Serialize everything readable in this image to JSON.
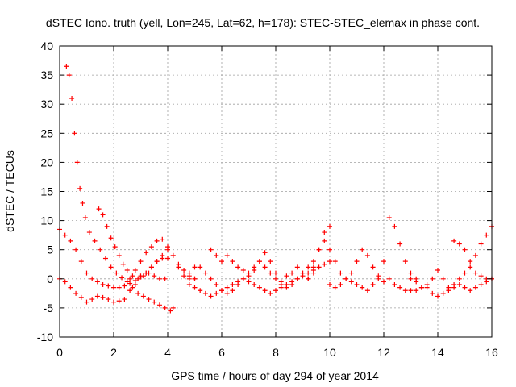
{
  "chart_data": {
    "type": "scatter",
    "title": "dSTEC Iono. truth (yell, Lon=245, Lat=62, h=178): STEC-STEC_elemax in phase cont.",
    "xlabel": "GPS time / hours of day 294 of year 2014",
    "ylabel": "dSTEC  / TECUs",
    "xlim": [
      0,
      16
    ],
    "ylim": [
      -10,
      40
    ],
    "xticks": [
      "0",
      "2",
      "4",
      "6",
      "8",
      "10",
      "12",
      "14",
      "16"
    ],
    "yticks": [
      "-10",
      "-5",
      "0",
      "5",
      "10",
      "15",
      "20",
      "25",
      "30",
      "35",
      "40"
    ],
    "grid": true,
    "marker": "+",
    "color": "#ff0000",
    "series": [
      {
        "x": [
          0.25,
          0.35,
          0.45,
          0.55,
          0.65,
          0.75,
          0.85,
          0.95,
          1.1,
          1.3,
          1.5,
          1.7,
          1.9,
          2.1,
          2.3,
          2.5,
          2.7,
          2.9,
          3.1,
          3.3,
          3.5,
          3.7,
          3.9,
          4.1,
          4.2
        ],
        "y": [
          36.5,
          35,
          31,
          25,
          20,
          15.5,
          13,
          10.5,
          8,
          6.5,
          5,
          3.5,
          2,
          1,
          0.2,
          -0.5,
          -1.5,
          -2.5,
          -3,
          -3.5,
          -4,
          -4.5,
          -5,
          -5.5,
          -5
        ]
      },
      {
        "x": [
          0.0,
          0.2,
          0.4,
          0.6,
          0.8,
          1.0,
          1.2,
          1.4,
          1.6,
          1.8,
          2.0,
          2.2,
          2.4,
          2.6,
          2.8,
          3.0,
          3.2,
          3.4,
          3.6,
          3.8,
          4.0,
          4.2,
          4.4,
          4.6,
          4.8,
          5.0
        ],
        "y": [
          8.5,
          7.5,
          6.5,
          5,
          3,
          1,
          0,
          -0.5,
          -1,
          -1.2,
          -1.5,
          -1.5,
          -1.2,
          -0.8,
          -0.3,
          0.3,
          1,
          2,
          3,
          4,
          5,
          4,
          2,
          0.5,
          0,
          0
        ]
      },
      {
        "x": [
          0.0,
          0.2,
          0.4,
          0.6,
          0.8,
          1.0,
          1.2,
          1.4,
          1.6,
          1.8,
          2.0,
          2.2,
          2.4,
          2.6,
          2.8,
          3.0,
          3.2,
          3.4,
          3.6,
          3.8,
          4.0
        ],
        "y": [
          0,
          -0.5,
          -1.5,
          -2.5,
          -3.2,
          -4,
          -3.5,
          -3,
          -3.2,
          -3.5,
          -4,
          -3.8,
          -3.5,
          -2,
          -1,
          0.5,
          1,
          2,
          3,
          3.5,
          3.5
        ]
      },
      {
        "x": [
          1.45,
          1.6,
          1.75,
          1.9,
          2.05,
          2.2,
          2.35,
          2.5,
          2.7,
          2.9,
          3.1,
          3.3,
          3.5,
          3.7,
          3.9
        ],
        "y": [
          12,
          11,
          9,
          7,
          5.5,
          4,
          2.5,
          1.5,
          0.5,
          0,
          0.5,
          1,
          0.5,
          0,
          0
        ]
      },
      {
        "x": [
          2.6,
          2.8,
          3.0,
          3.2,
          3.4,
          3.6,
          3.8,
          4.0,
          4.2,
          4.4,
          4.6,
          4.8,
          5.0
        ],
        "y": [
          0,
          1.5,
          3,
          4.5,
          5.5,
          6.5,
          6.8,
          5.5,
          4,
          2.5,
          1.5,
          0.5,
          0
        ]
      },
      {
        "x": [
          4.8,
          5.0,
          5.2,
          5.4,
          5.6,
          5.8,
          6.0,
          6.2,
          6.4,
          6.6,
          6.8,
          7.0,
          7.2,
          7.4,
          7.6,
          7.8,
          8.0,
          8.2,
          8.4,
          8.6,
          8.8,
          9.0,
          9.2,
          9.4,
          9.6,
          9.8,
          10.0
        ],
        "y": [
          1,
          2,
          2,
          1,
          0,
          -1,
          -2,
          -2.5,
          -2,
          -1,
          0,
          1,
          2,
          3,
          2,
          1,
          0,
          -1,
          -1.5,
          -1,
          0,
          1,
          2,
          3,
          5,
          8,
          9
        ]
      },
      {
        "x": [
          4.8,
          5.0,
          5.2,
          5.4,
          5.6,
          5.8,
          6.0,
          6.2,
          6.4,
          6.6,
          6.8,
          7.0,
          7.2,
          7.4,
          7.6,
          7.8,
          8.0,
          8.2,
          8.4,
          8.6,
          8.8,
          9.0,
          9.2,
          9.4,
          9.6,
          9.8,
          10.0
        ],
        "y": [
          -1,
          -1.5,
          -2,
          -2.5,
          -3,
          -2.5,
          -2,
          -1.5,
          -1,
          -0.5,
          0,
          -0.5,
          -1,
          -1.5,
          -2,
          -2.5,
          -2,
          -1.5,
          -1,
          -0.5,
          0,
          0.5,
          1,
          1.5,
          2,
          2.5,
          3
        ]
      },
      {
        "x": [
          5.6,
          5.8,
          6.0,
          6.2,
          6.4,
          6.6,
          6.8,
          7.0,
          7.2,
          7.4,
          7.6,
          7.8,
          8.0,
          8.2,
          8.4,
          8.6,
          8.8,
          9.0,
          9.2,
          9.4
        ],
        "y": [
          5,
          4,
          3,
          4,
          3,
          2,
          1.5,
          0.5,
          1.5,
          3,
          4.5,
          3,
          1,
          -0.5,
          0.5,
          1,
          2,
          1,
          0,
          1
        ]
      },
      {
        "x": [
          9.2,
          9.4,
          9.6,
          9.8,
          10.0,
          10.2,
          10.4,
          10.6,
          10.8,
          11.0,
          11.2,
          11.4,
          11.6,
          11.8,
          12.0,
          12.2,
          12.4,
          12.6,
          12.8,
          13.0,
          13.2
        ],
        "y": [
          0,
          2,
          5,
          6.5,
          5,
          3,
          1,
          0,
          -0.5,
          -1,
          -1.5,
          -2,
          -1,
          0.5,
          3,
          10.5,
          9,
          6,
          3,
          1,
          0
        ]
      },
      {
        "x": [
          10.0,
          10.2,
          10.4,
          10.6,
          10.8,
          11.0,
          11.2,
          11.4,
          11.6,
          11.8,
          12.0,
          12.2
        ],
        "y": [
          -1,
          -1.5,
          -1,
          0,
          1,
          3,
          5,
          4,
          2,
          0,
          -0.5,
          0
        ]
      },
      {
        "x": [
          13.0,
          13.2,
          13.4,
          13.6,
          13.8,
          14.0,
          14.2,
          14.4,
          14.6,
          14.8,
          15.0,
          15.2,
          15.4,
          15.6,
          15.8,
          16.0
        ],
        "y": [
          0,
          -0.5,
          -1.5,
          -1,
          0,
          1.5,
          0,
          -1.5,
          -1,
          0,
          1,
          2,
          4,
          6,
          7.5,
          9
        ]
      },
      {
        "x": [
          12.4,
          12.6,
          12.8,
          13.0,
          13.2,
          13.4,
          13.6,
          13.8,
          14.0,
          14.2,
          14.4,
          14.6,
          14.8,
          15.0,
          15.2,
          15.4,
          15.6,
          15.8,
          16.0
        ],
        "y": [
          -1,
          -1.5,
          -2,
          -2,
          -2,
          -1.5,
          -1.5,
          -2.5,
          -3,
          -2.5,
          -2,
          -1.5,
          -1,
          -1.5,
          -2,
          -1.5,
          -1,
          -0.5,
          0
        ]
      },
      {
        "x": [
          14.6,
          14.8,
          15.0,
          15.2,
          15.4,
          15.6,
          15.8,
          16.0
        ],
        "y": [
          6.5,
          6,
          5,
          3,
          1,
          0.5,
          0,
          0
        ]
      }
    ]
  }
}
